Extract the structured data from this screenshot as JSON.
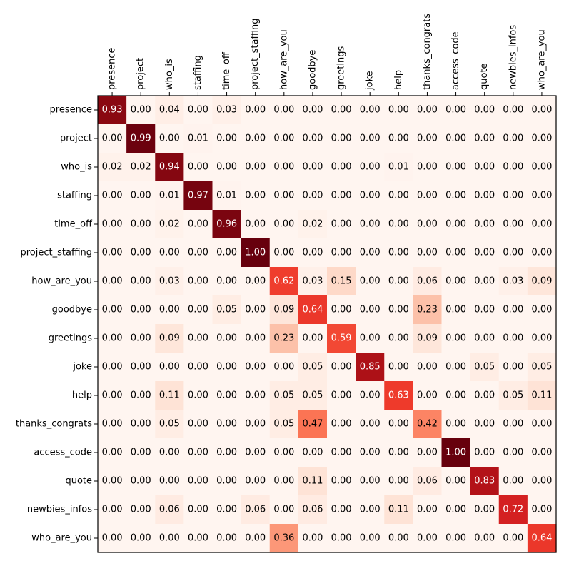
{
  "chart_data": {
    "type": "heatmap",
    "title": "",
    "xlabel": "",
    "ylabel": "",
    "x_labels": [
      "presence",
      "project",
      "who_is",
      "staffing",
      "time_off",
      "project_staffing",
      "how_are_you",
      "goodbye",
      "greetings",
      "joke",
      "help",
      "thanks_congrats",
      "access_code",
      "quote",
      "newbies_infos",
      "who_are_you"
    ],
    "y_labels": [
      "presence",
      "project",
      "who_is",
      "staffing",
      "time_off",
      "project_staffing",
      "how_are_you",
      "goodbye",
      "greetings",
      "joke",
      "help",
      "thanks_congrats",
      "access_code",
      "quote",
      "newbies_infos",
      "who_are_you"
    ],
    "x_tick_position": "top",
    "x_tick_rotation": "vertical",
    "colormap": "Reds",
    "value_range": [
      0,
      1
    ],
    "grid": false,
    "cell_labels": true,
    "value_format": "0.00",
    "values": [
      [
        0.93,
        0.0,
        0.04,
        0.0,
        0.03,
        0.0,
        0.0,
        0.0,
        0.0,
        0.0,
        0.0,
        0.0,
        0.0,
        0.0,
        0.0,
        0.0
      ],
      [
        0.0,
        0.99,
        0.0,
        0.01,
        0.0,
        0.0,
        0.0,
        0.0,
        0.0,
        0.0,
        0.0,
        0.0,
        0.0,
        0.0,
        0.0,
        0.0
      ],
      [
        0.02,
        0.02,
        0.94,
        0.0,
        0.0,
        0.0,
        0.0,
        0.0,
        0.0,
        0.0,
        0.01,
        0.0,
        0.0,
        0.0,
        0.0,
        0.0
      ],
      [
        0.0,
        0.0,
        0.01,
        0.97,
        0.01,
        0.0,
        0.0,
        0.0,
        0.0,
        0.0,
        0.0,
        0.0,
        0.0,
        0.0,
        0.0,
        0.0
      ],
      [
        0.0,
        0.0,
        0.02,
        0.0,
        0.96,
        0.0,
        0.0,
        0.02,
        0.0,
        0.0,
        0.0,
        0.0,
        0.0,
        0.0,
        0.0,
        0.0
      ],
      [
        0.0,
        0.0,
        0.0,
        0.0,
        0.0,
        1.0,
        0.0,
        0.0,
        0.0,
        0.0,
        0.0,
        0.0,
        0.0,
        0.0,
        0.0,
        0.0
      ],
      [
        0.0,
        0.0,
        0.03,
        0.0,
        0.0,
        0.0,
        0.62,
        0.03,
        0.15,
        0.0,
        0.0,
        0.06,
        0.0,
        0.0,
        0.03,
        0.09
      ],
      [
        0.0,
        0.0,
        0.0,
        0.0,
        0.05,
        0.0,
        0.09,
        0.64,
        0.0,
        0.0,
        0.0,
        0.23,
        0.0,
        0.0,
        0.0,
        0.0
      ],
      [
        0.0,
        0.0,
        0.09,
        0.0,
        0.0,
        0.0,
        0.23,
        0.0,
        0.59,
        0.0,
        0.0,
        0.09,
        0.0,
        0.0,
        0.0,
        0.0
      ],
      [
        0.0,
        0.0,
        0.0,
        0.0,
        0.0,
        0.0,
        0.0,
        0.05,
        0.0,
        0.85,
        0.0,
        0.0,
        0.0,
        0.05,
        0.0,
        0.05
      ],
      [
        0.0,
        0.0,
        0.11,
        0.0,
        0.0,
        0.0,
        0.05,
        0.05,
        0.0,
        0.0,
        0.63,
        0.0,
        0.0,
        0.0,
        0.05,
        0.11
      ],
      [
        0.0,
        0.0,
        0.05,
        0.0,
        0.0,
        0.0,
        0.05,
        0.47,
        0.0,
        0.0,
        0.0,
        0.42,
        0.0,
        0.0,
        0.0,
        0.0
      ],
      [
        0.0,
        0.0,
        0.0,
        0.0,
        0.0,
        0.0,
        0.0,
        0.0,
        0.0,
        0.0,
        0.0,
        0.0,
        1.0,
        0.0,
        0.0,
        0.0
      ],
      [
        0.0,
        0.0,
        0.0,
        0.0,
        0.0,
        0.0,
        0.0,
        0.11,
        0.0,
        0.0,
        0.0,
        0.06,
        0.0,
        0.83,
        0.0,
        0.0
      ],
      [
        0.0,
        0.0,
        0.06,
        0.0,
        0.0,
        0.06,
        0.0,
        0.06,
        0.0,
        0.0,
        0.11,
        0.0,
        0.0,
        0.0,
        0.72,
        0.0
      ],
      [
        0.0,
        0.0,
        0.0,
        0.0,
        0.0,
        0.0,
        0.36,
        0.0,
        0.0,
        0.0,
        0.0,
        0.0,
        0.0,
        0.0,
        0.0,
        0.64
      ]
    ]
  }
}
